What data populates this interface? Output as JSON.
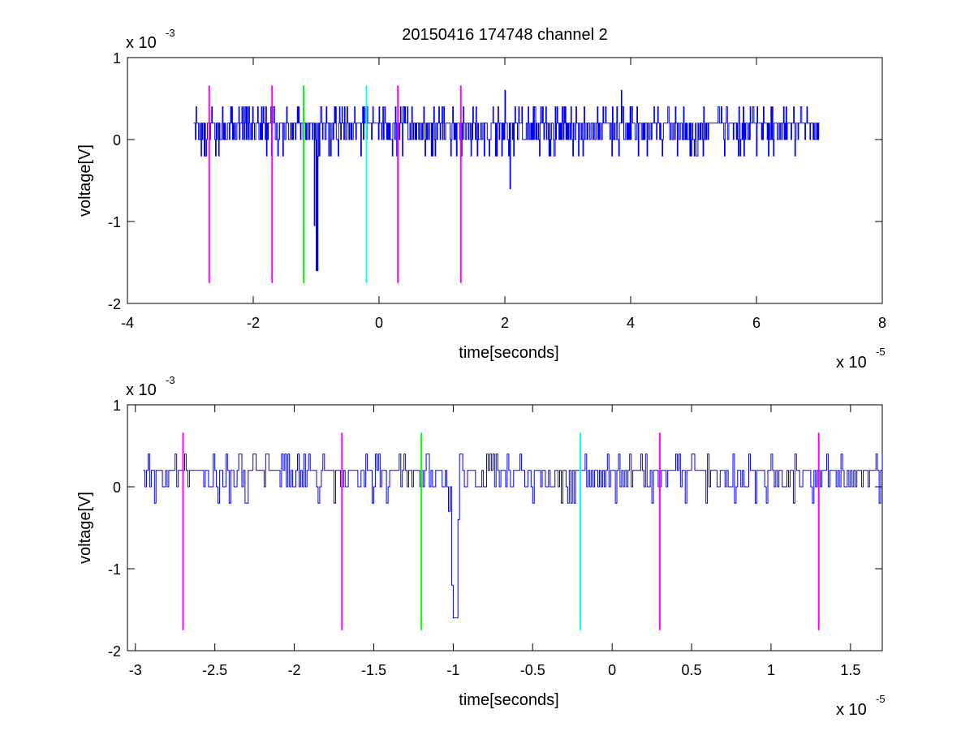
{
  "chart_data": [
    {
      "type": "line",
      "title": "20150416 174748 channel 2",
      "xlabel": "time[seconds]",
      "ylabel": "voltage[V]",
      "x_multiplier": "x 10",
      "x_multiplier_exp": "-5",
      "y_multiplier": "x 10",
      "y_multiplier_exp": "-3",
      "xlim": [
        -4,
        8
      ],
      "ylim": [
        -2,
        1
      ],
      "xticks": [
        -4,
        -2,
        0,
        2,
        4,
        6,
        8
      ],
      "xtick_labels": [
        "-4",
        "-2",
        "0",
        "2",
        "4",
        "6",
        "8"
      ],
      "yticks": [
        -2,
        -1,
        0,
        1
      ],
      "ytick_labels": [
        "-2",
        "-1",
        "0",
        "1"
      ],
      "grid": false,
      "signal": {
        "color": "#0000ff",
        "x_start": -2.95,
        "x_end": 7.0,
        "dt": 0.01,
        "levels": [
          -0.2,
          0,
          0.2,
          0.4
        ],
        "baseline": 0.18,
        "spikes": [
          {
            "x": -1.0,
            "y": -1.6
          },
          {
            "x": -0.98,
            "y": -1.6
          },
          {
            "x": -1.03,
            "y": -1.05
          },
          {
            "x": -0.95,
            "y": -0.2
          },
          {
            "x": 2.08,
            "y": -0.6
          },
          {
            "x": 2.0,
            "y": 0.6
          },
          {
            "x": 3.85,
            "y": 0.6
          },
          {
            "x": 2.03,
            "y": 0.2
          }
        ]
      },
      "markers": [
        {
          "x": -2.7,
          "color": "#ff00ff"
        },
        {
          "x": -1.7,
          "color": "#ff00ff"
        },
        {
          "x": -1.2,
          "color": "#00ff00"
        },
        {
          "x": -0.2,
          "color": "#00ffff"
        },
        {
          "x": 0.3,
          "color": "#ff00ff"
        },
        {
          "x": 1.3,
          "color": "#ff00ff"
        }
      ],
      "marker_y_range": [
        -1.75,
        0.66
      ]
    },
    {
      "type": "line",
      "title": "",
      "xlabel": "time[seconds]",
      "ylabel": "voltage[V]",
      "x_multiplier": "x 10",
      "x_multiplier_exp": "-5",
      "y_multiplier": "x 10",
      "y_multiplier_exp": "-3",
      "xlim": [
        -3.05,
        1.7
      ],
      "ylim": [
        -2,
        1
      ],
      "xticks": [
        -3,
        -2.5,
        -2,
        -1.5,
        -1,
        -0.5,
        0,
        0.5,
        1,
        1.5
      ],
      "xtick_labels": [
        "-3",
        "-2.5",
        "-2",
        "-1.5",
        "-1",
        "-0.5",
        "0",
        "0.5",
        "1",
        "1.5"
      ],
      "yticks": [
        -2,
        -1,
        0,
        1
      ],
      "ytick_labels": [
        "-2",
        "-1",
        "0",
        "1"
      ],
      "grid": false,
      "signal": {
        "color": "#0000ff",
        "x_start": -2.95,
        "x_end": 1.7,
        "dt": 0.01,
        "levels": [
          -0.2,
          0,
          0.2,
          0.4
        ],
        "baseline": 0.18,
        "spikes": [
          {
            "x": -1.0,
            "y": -1.6
          },
          {
            "x": -0.99,
            "y": -1.6
          },
          {
            "x": -0.98,
            "y": -1.6
          },
          {
            "x": -1.01,
            "y": -1.2
          },
          {
            "x": -0.97,
            "y": -0.4
          },
          {
            "x": -1.03,
            "y": -0.3
          }
        ]
      },
      "markers": [
        {
          "x": -2.7,
          "color": "#ff00ff"
        },
        {
          "x": -1.7,
          "color": "#ff00ff"
        },
        {
          "x": -1.2,
          "color": "#00ff00"
        },
        {
          "x": -0.2,
          "color": "#00ffff"
        },
        {
          "x": 0.3,
          "color": "#ff00ff"
        },
        {
          "x": 1.3,
          "color": "#ff00ff"
        }
      ],
      "marker_y_range": [
        -1.75,
        0.66
      ]
    }
  ]
}
